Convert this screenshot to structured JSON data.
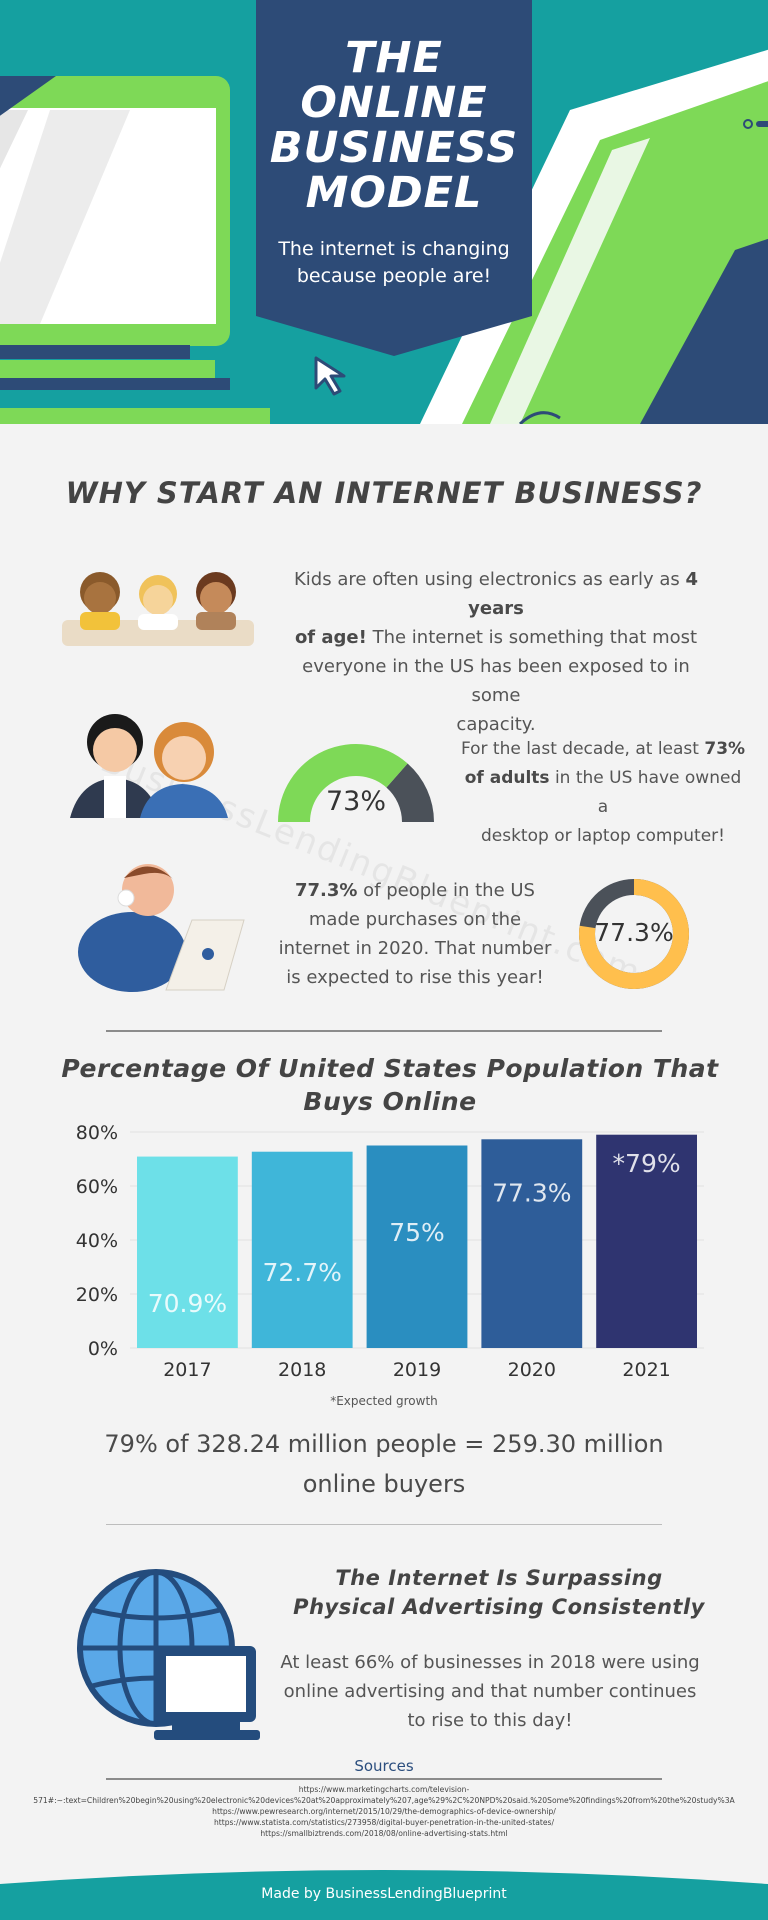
{
  "header": {
    "title_lines": [
      "THE",
      "ONLINE",
      "BUSINESS",
      "MODEL"
    ],
    "subtitle_lines": [
      "The internet is changing",
      "because people are!"
    ],
    "colors": {
      "background": "#15a0a0",
      "banner": "#2d4b77",
      "device_green": "#7ed957",
      "device_navy": "#2d4b77"
    }
  },
  "why": {
    "heading": "WHY START AN INTERNET BUSINESS?",
    "kids": {
      "lines": [
        {
          "pre": "Kids are often using electronics as early as ",
          "bold": "4 years",
          "post": ""
        },
        {
          "pre": "",
          "bold": "of age!",
          "post": " The internet is something that most"
        },
        {
          "pre": "everyone in the US has been exposed to in some",
          "bold": "",
          "post": ""
        },
        {
          "pre": "capacity.",
          "bold": "",
          "post": ""
        }
      ]
    },
    "adults": {
      "gauge_label": "73%",
      "gauge_value": 0.73,
      "gauge_colors": {
        "fill": "#7ed957",
        "rest": "#4b5159"
      },
      "lines": [
        {
          "pre": "For the last decade, at least ",
          "bold": "73%",
          "post": ""
        },
        {
          "pre": "",
          "bold": "of adults",
          "post": " in the US have owned a"
        },
        {
          "pre": "desktop or laptop computer!",
          "bold": "",
          "post": ""
        }
      ]
    },
    "purchases": {
      "ring_label": "77.3%",
      "ring_value": 0.773,
      "ring_colors": {
        "fill": "#ffbf4d",
        "rest": "#4b5159"
      },
      "lines": [
        {
          "pre": "",
          "bold": "77.3%",
          "post": " of people in the US"
        },
        {
          "pre": "made purchases on the",
          "bold": "",
          "post": ""
        },
        {
          "pre": "internet in 2020. That number",
          "bold": "",
          "post": ""
        },
        {
          "pre": "is expected to rise this year!",
          "bold": "",
          "post": ""
        }
      ]
    }
  },
  "chart_data": {
    "type": "bar",
    "title": "Percentage Of United States Population That Buys Online",
    "categories": [
      "2017",
      "2018",
      "2019",
      "2020",
      "2021"
    ],
    "values": [
      70.9,
      72.7,
      75,
      77.3,
      79
    ],
    "data_labels": [
      "70.9%",
      "72.7%",
      "75%",
      "77.3%",
      "*79%"
    ],
    "bar_colors": [
      "#6de0e8",
      "#3fb6d9",
      "#2a8ec0",
      "#2e5d99",
      "#2f3470"
    ],
    "ylim": [
      0,
      80
    ],
    "yticks": [
      0,
      20,
      40,
      60,
      80
    ],
    "ytick_labels": [
      "0%",
      "20%",
      "40%",
      "60%",
      "80%"
    ],
    "xlabel": "",
    "ylabel": "",
    "grid": true,
    "note": "*Expected growth"
  },
  "buyers": {
    "lines": [
      "79% of 328.24 million people = 259.30 million",
      "online buyers"
    ]
  },
  "advertising": {
    "heading_lines": [
      "The Internet Is Surpassing",
      "Physical Advertising Consistently"
    ],
    "lines": [
      "At least 66% of businesses in 2018 were using",
      "online advertising and that number continues",
      "to rise to this day!"
    ]
  },
  "sources": {
    "title": "Sources",
    "lines": [
      "https://www.marketingcharts.com/television-",
      "571#:~:text=Children%20begin%20using%20electronic%20devices%20at%20approximately%207,age%29%2C%20NPD%20said.%20Some%20findings%20from%20the%20study%3A",
      "https://www.pewresearch.org/internet/2015/10/29/the-demographics-of-device-ownership/",
      "https://www.statista.com/statistics/273958/digital-buyer-penetration-in-the-united-states/",
      "https://smallbiztrends.com/2018/08/online-advertising-stats.html"
    ]
  },
  "footer": {
    "text": "Made by BusinessLendingBlueprint",
    "color": "#15a0a0"
  },
  "watermark": "BusinessLendingBlueprint.com"
}
